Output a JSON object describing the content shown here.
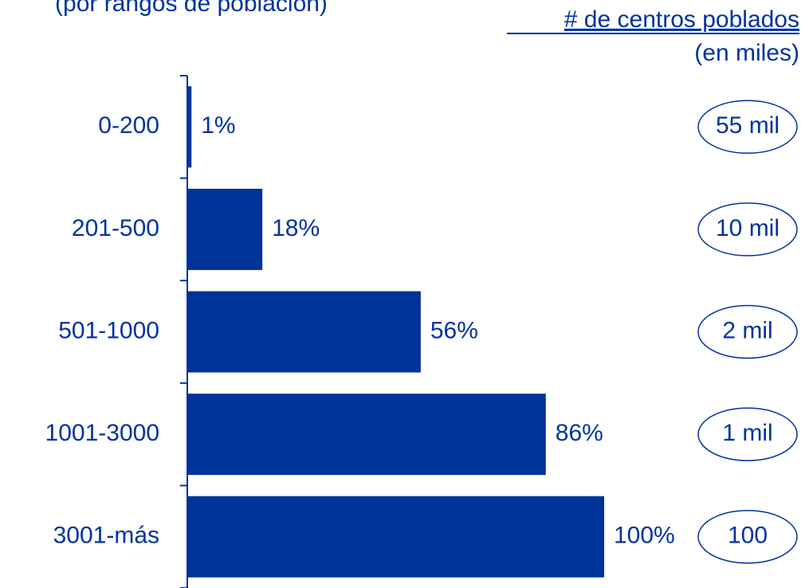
{
  "chart_data": {
    "type": "hbar",
    "title": "(por rangos de población)",
    "categories": [
      "0-200",
      "201-500",
      "501-1000",
      "1001-3000",
      "3001-más"
    ],
    "values": [
      1,
      18,
      56,
      86,
      100
    ],
    "value_labels": [
      "1%",
      "18%",
      "56%",
      "86%",
      "100%"
    ],
    "color": "#003399",
    "xlim": [
      0,
      100
    ],
    "side_header": "# de centros poblados",
    "side_unit": "(en miles)",
    "side_labels": [
      "55 mil",
      "10 mil",
      "2 mil",
      "1 mil",
      "100"
    ]
  }
}
